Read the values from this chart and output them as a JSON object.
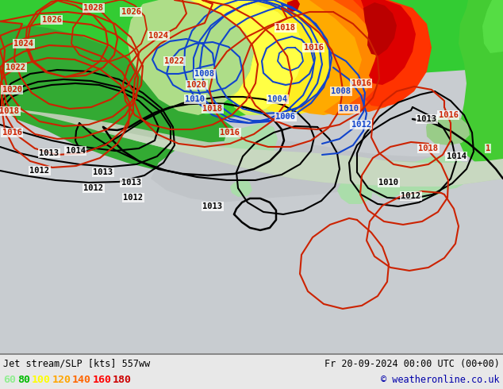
{
  "title_left": "Jet stream/SLP [kts] 557ww",
  "title_right": "Fr 20-09-2024 00:00 UTC (00+00)",
  "copyright": "© weatheronline.co.uk",
  "legend_values": [
    "60",
    "80",
    "100",
    "120",
    "140",
    "160",
    "180"
  ],
  "legend_colors": [
    "#90ee90",
    "#00bb00",
    "#ffff00",
    "#ffa500",
    "#ff6600",
    "#ff0000",
    "#cc0000"
  ],
  "figsize": [
    6.34,
    4.9
  ],
  "dpi": 100
}
